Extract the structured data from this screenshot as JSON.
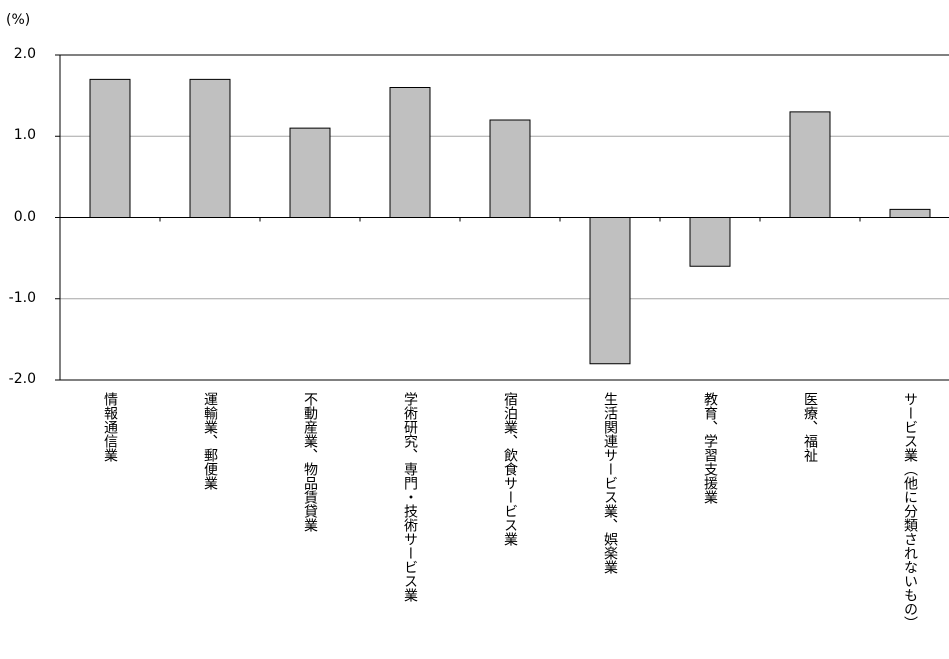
{
  "chart_data": {
    "type": "bar",
    "unit": "(%)",
    "categories": [
      "情報通信業",
      "運輸業、郵便業",
      "不動産業、物品賃貸業",
      "学術研究、専門・技術サービス業",
      "宿泊業、飲食サービス業",
      "生活関連サービス業、娯楽業",
      "教育、学習支援業",
      "医療、福祉",
      "サービス業（他に分類されないもの）"
    ],
    "values": [
      1.7,
      1.7,
      1.1,
      1.6,
      1.2,
      -1.8,
      -0.6,
      1.3,
      0.1
    ],
    "ylim": [
      -2.0,
      2.0
    ],
    "yticks": [
      "2.0",
      "1.0",
      "0.0",
      "-1.0",
      "-2.0"
    ],
    "ytick_values": [
      2.0,
      1.0,
      0.0,
      -1.0,
      -2.0
    ],
    "grid": true,
    "bar_color": "#c0c0c0",
    "bar_stroke": "#000000",
    "grid_color": "#a6a6a6"
  }
}
